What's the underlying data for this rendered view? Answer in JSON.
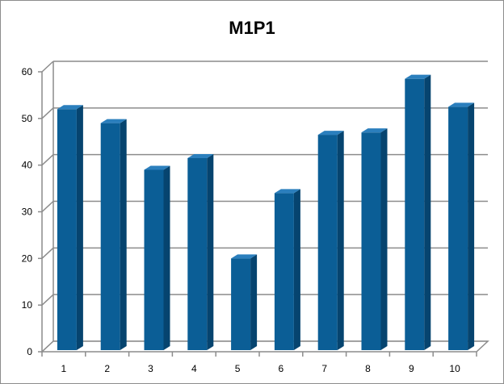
{
  "chart_data": {
    "type": "bar",
    "title": "M1P1",
    "xlabel": "",
    "ylabel": "",
    "categories": [
      "1",
      "2",
      "3",
      "4",
      "5",
      "6",
      "7",
      "8",
      "9",
      "10"
    ],
    "values": [
      52,
      49,
      39,
      41.5,
      20,
      34,
      46.5,
      47,
      58.5,
      52.5
    ],
    "ylim": [
      0,
      60
    ],
    "yticks": [
      "0",
      "10",
      "20",
      "30",
      "40",
      "50",
      "60"
    ],
    "grid": true,
    "legend": "none",
    "colors": {
      "bar_front": "#0b5e96",
      "bar_side": "#06446f",
      "bar_top": "#2b7fbd",
      "grid": "#8c8c8c"
    }
  }
}
